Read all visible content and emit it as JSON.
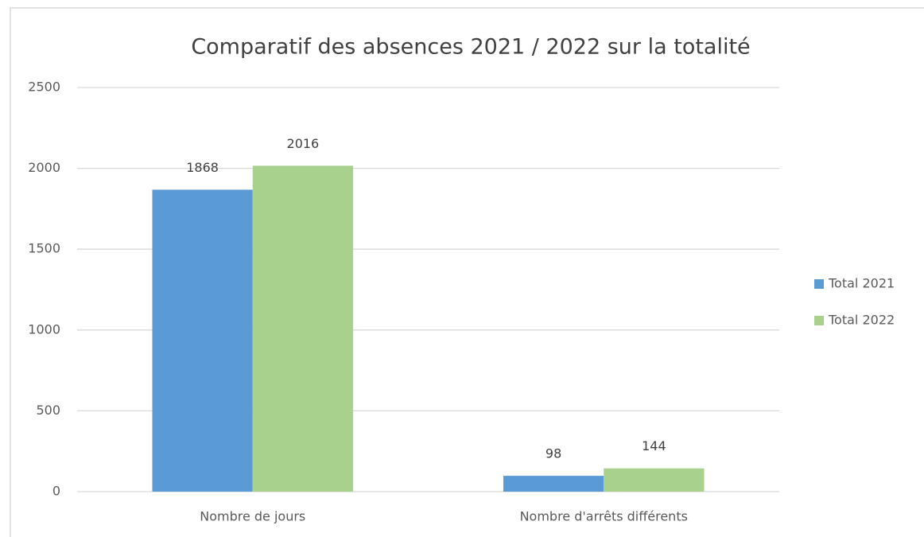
{
  "chart_data": {
    "type": "bar",
    "title": "Comparatif des absences 2021 / 2022 sur la totalité",
    "categories": [
      "Nombre de jours",
      "Nombre d'arrêts différents"
    ],
    "series": [
      {
        "name": "Total 2021",
        "color": "#5b9bd5",
        "values": [
          1868,
          98
        ]
      },
      {
        "name": "Total 2022",
        "color": "#a9d18e",
        "values": [
          2016,
          144
        ]
      }
    ],
    "ylim": [
      0,
      2500
    ],
    "yticks": [
      0,
      500,
      1000,
      1500,
      2000,
      2500
    ],
    "grid": true,
    "legend": "right"
  }
}
